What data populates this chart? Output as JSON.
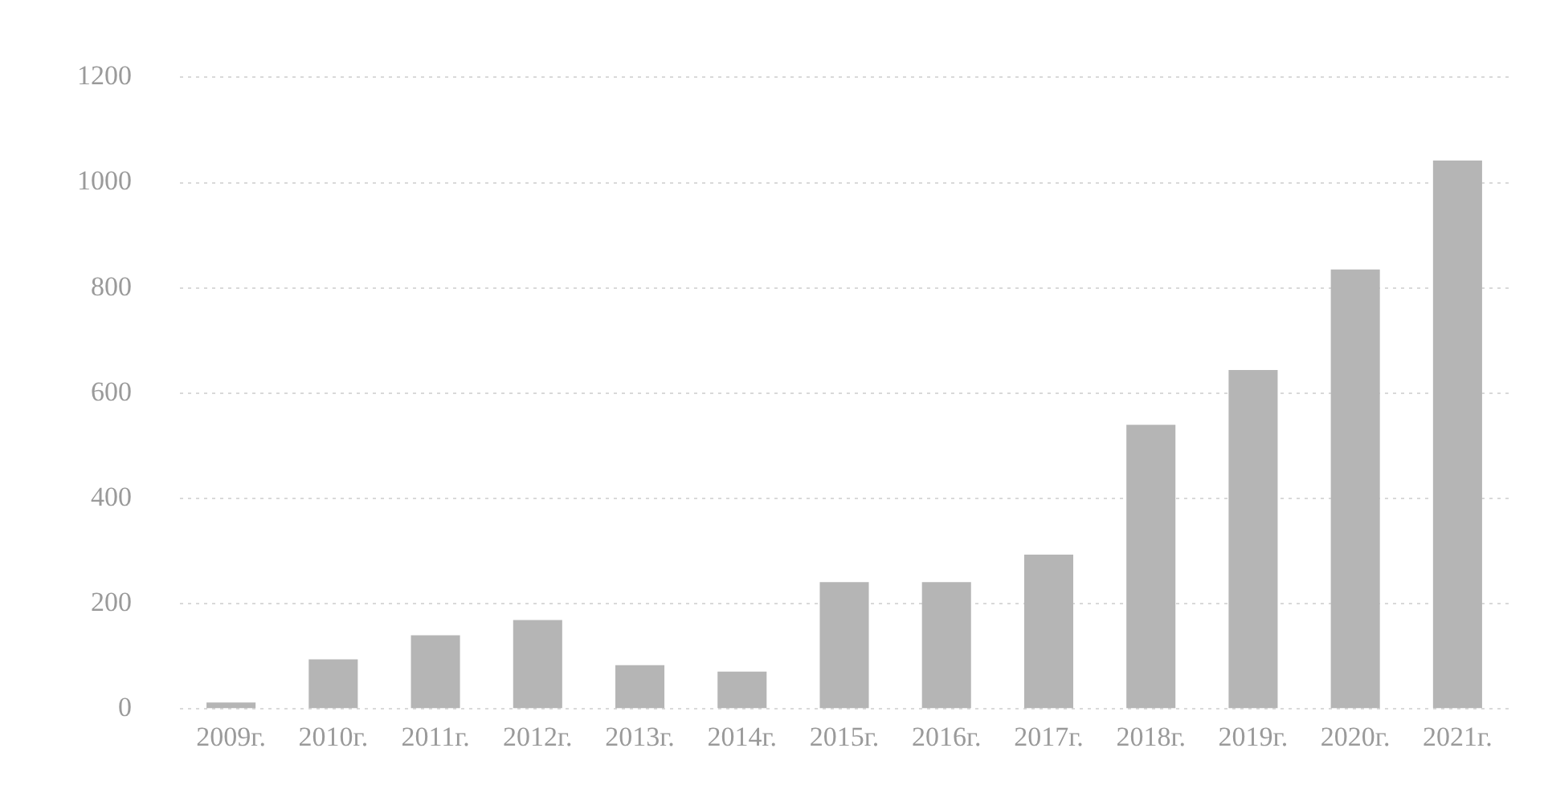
{
  "chart_data": {
    "type": "bar",
    "categories": [
      "2009г.",
      "2010г.",
      "2011г.",
      "2012г.",
      "2013г.",
      "2014г.",
      "2015г.",
      "2016г.",
      "2017г.",
      "2018г.",
      "2019г.",
      "2020г.",
      "2021г."
    ],
    "values": [
      12,
      94,
      140,
      169,
      83,
      71,
      241,
      241,
      293,
      540,
      644,
      835,
      1042
    ],
    "color": "#b5b5b5",
    "ylim": [
      0,
      1200
    ],
    "yticks": [
      0,
      200,
      400,
      600,
      800,
      1000,
      1200
    ],
    "grid": "y",
    "legend": false
  }
}
